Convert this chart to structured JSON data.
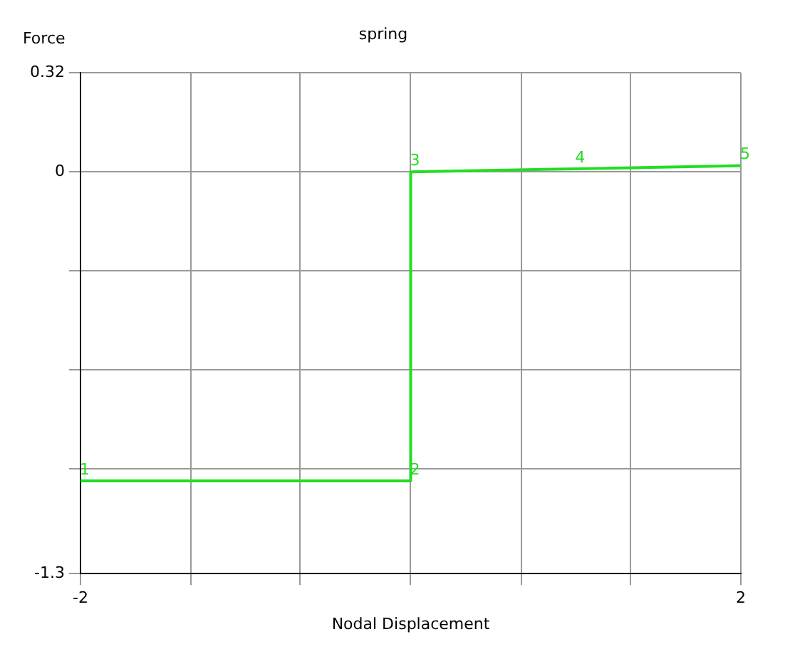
{
  "chart_data": {
    "type": "line",
    "title": "spring",
    "xlabel": "Nodal Displacement",
    "ylabel": "Force",
    "x": [
      -2,
      0,
      0,
      1,
      2
    ],
    "series": [
      {
        "color": "#22dd22",
        "values": [
          -1.0,
          -1.0,
          0,
          0.01,
          0.02
        ]
      }
    ],
    "xlim": [
      -2,
      2
    ],
    "xticks": [
      -2,
      {
        "value": -1.33,
        "label": null
      },
      {
        "value": -0.67,
        "label": null
      },
      {
        "value": 0,
        "label": null
      },
      {
        "value": 0.67,
        "label": null
      },
      {
        "value": 1.33,
        "label": null
      },
      2
    ],
    "ylim": [
      -1.3,
      0.32
    ],
    "yticks": [
      -1.3,
      {
        "value": -0.96,
        "label": null
      },
      {
        "value": -0.64,
        "label": null
      },
      {
        "value": -0.32,
        "label": null
      },
      0,
      0.32
    ],
    "grid": true,
    "legend": false,
    "line_style": "solid",
    "marker": "none",
    "annotations": [
      {
        "text": "1",
        "x": -2,
        "y": -1.0
      },
      {
        "text": "2",
        "x": 0,
        "y": -1.0
      },
      {
        "text": "3",
        "x": 0,
        "y": 0
      },
      {
        "text": "4",
        "x": 1,
        "y": 0.01
      },
      {
        "text": "5",
        "x": 2,
        "y": 0.02
      }
    ]
  }
}
